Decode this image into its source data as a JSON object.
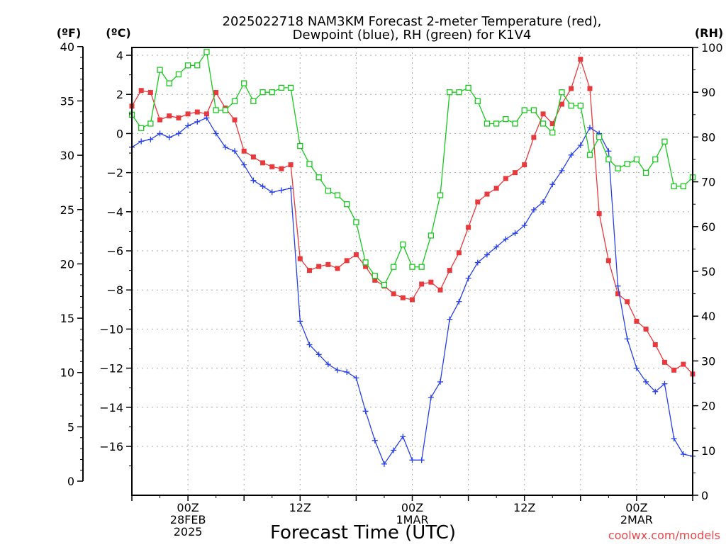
{
  "chart_data": {
    "type": "line",
    "title": [
      "2025022718 NAM3KM Forecast 2-meter Temperature (red),",
      "Dewpoint (blue), RH (green) for K1V4"
    ],
    "xlabel": "Forecast Time (UTC)",
    "credit": "coolwx.com/models",
    "units": {
      "left_outer": "(ºF)",
      "left_inner": "(ºC)",
      "right": "(RH)"
    },
    "celsius_axis": {
      "ylim": [
        -18.5,
        4.4
      ],
      "ticks": [
        4,
        2,
        0,
        -2,
        -4,
        -6,
        -8,
        -10,
        -12,
        -14,
        -16
      ],
      "tick_labels": [
        "4",
        "2",
        "0",
        "−2",
        "−4",
        "−6",
        "−8",
        "−10",
        "−12",
        "−14",
        "−16"
      ]
    },
    "fahrenheit_axis": {
      "ylim": [
        0,
        40
      ],
      "ticks": [
        0,
        5,
        10,
        15,
        20,
        25,
        30,
        35,
        40
      ],
      "tick_labels": [
        "0",
        "5",
        "10",
        "15",
        "20",
        "25",
        "30",
        "35",
        "40"
      ]
    },
    "rh_axis": {
      "ylim": [
        0,
        100
      ],
      "ticks": [
        0,
        10,
        20,
        30,
        40,
        50,
        60,
        70,
        80,
        90,
        100
      ],
      "tick_labels": [
        "0",
        "10",
        "20",
        "30",
        "40",
        "50",
        "60",
        "70",
        "80",
        "90",
        "100"
      ]
    },
    "x_hours_range": [
      -6,
      54
    ],
    "x_ticks": [
      {
        "hour": 0,
        "label": [
          "00Z",
          "28FEB",
          "2025"
        ]
      },
      {
        "hour": 12,
        "label": [
          "12Z"
        ]
      },
      {
        "hour": 24,
        "label": [
          "00Z",
          "1MAR"
        ]
      },
      {
        "hour": 36,
        "label": [
          "12Z"
        ]
      },
      {
        "hour": 48,
        "label": [
          "00Z",
          "2MAR"
        ]
      }
    ],
    "x_hours": [
      -6,
      -5,
      -4,
      -3,
      -2,
      -1,
      0,
      1,
      2,
      3,
      4,
      5,
      6,
      7,
      8,
      9,
      10,
      11,
      12,
      13,
      14,
      15,
      16,
      17,
      18,
      19,
      20,
      21,
      22,
      23,
      24,
      25,
      26,
      27,
      28,
      29,
      30,
      31,
      32,
      33,
      34,
      35,
      36,
      37,
      38,
      39,
      40,
      41,
      42,
      43,
      44,
      45,
      46,
      47,
      48,
      49,
      50,
      51,
      52,
      53,
      54
    ],
    "series": [
      {
        "name": "Temperature",
        "unit": "°C",
        "color": "#e8393c",
        "marker": "filled-square",
        "values": [
          1.4,
          2.2,
          2.1,
          0.7,
          0.9,
          0.8,
          1.0,
          1.1,
          1.0,
          2.1,
          1.3,
          0.7,
          -0.9,
          -1.2,
          -1.5,
          -1.7,
          -1.8,
          -1.6,
          -6.4,
          -7.0,
          -6.8,
          -6.7,
          -6.9,
          -6.5,
          -6.2,
          -6.8,
          -7.5,
          -7.8,
          -8.2,
          -8.4,
          -8.5,
          -7.7,
          -7.6,
          -8.0,
          -7.0,
          -6.1,
          -4.8,
          -3.5,
          -3.1,
          -2.8,
          -2.3,
          -2.0,
          -1.6,
          -0.2,
          1.0,
          0.5,
          1.5,
          2.3,
          3.8,
          2.3,
          -4.1,
          -6.5,
          -8.2,
          -8.6,
          -9.6,
          -10.0,
          -10.8,
          -11.7,
          -12.1,
          -11.8,
          -12.3
        ]
      },
      {
        "name": "Dewpoint",
        "unit": "°C",
        "color": "#2840e8",
        "marker": "plus",
        "values": [
          -0.7,
          -0.4,
          -0.3,
          0.0,
          -0.2,
          0.0,
          0.4,
          0.6,
          0.8,
          0.0,
          -0.7,
          -0.9,
          -1.6,
          -2.4,
          -2.7,
          -3.0,
          -2.9,
          -2.8,
          -9.6,
          -10.8,
          -11.3,
          -11.8,
          -12.1,
          -12.2,
          -12.5,
          -14.2,
          -15.7,
          -16.9,
          -16.2,
          -15.5,
          -16.7,
          -16.7,
          -13.5,
          -12.7,
          -9.5,
          -8.6,
          -7.4,
          -6.6,
          -6.2,
          -5.8,
          -5.4,
          -5.1,
          -4.7,
          -3.9,
          -3.5,
          -2.6,
          -1.9,
          -1.1,
          -0.6,
          0.3,
          0.0,
          -0.9,
          -7.8,
          -10.5,
          -12.0,
          -12.7,
          -13.2,
          -12.8,
          -15.6,
          -16.4,
          -16.5
        ]
      },
      {
        "name": "RH",
        "unit": "%",
        "color": "#19c81e",
        "marker": "open-square",
        "values": [
          85,
          82,
          83,
          95,
          92,
          94,
          96,
          96,
          99,
          86,
          86,
          88,
          92,
          88,
          90,
          90,
          91,
          91,
          78,
          74,
          71,
          68,
          67,
          65,
          61,
          52,
          49,
          47,
          51,
          56,
          51,
          51,
          58,
          67,
          90,
          90,
          91,
          88,
          83,
          83,
          84,
          83,
          86,
          86,
          83,
          81,
          90,
          87,
          87,
          76,
          80,
          75,
          73,
          74,
          75,
          72,
          75,
          79,
          69,
          69,
          71
        ]
      }
    ]
  }
}
